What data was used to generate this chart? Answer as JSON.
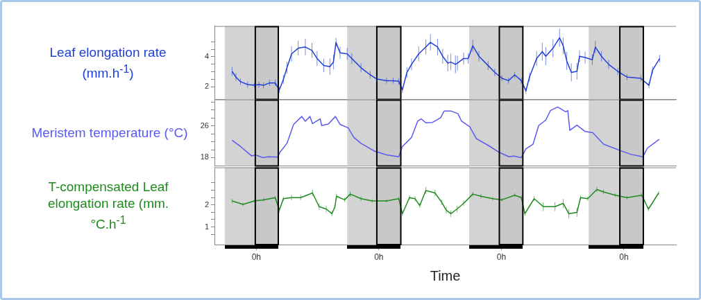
{
  "chart_data": [
    {
      "type": "line",
      "ylabel": "Leaf elongation rate (mm.h$^{-1}$)",
      "xlim": [
        "--01-01T15:48",
        "--01-05T10:12"
      ],
      "ylim": [
        1.15,
        6.05
      ],
      "yticks": [
        2,
        {
          "value": 2.5,
          "label": null
        },
        {
          "value": 3,
          "label": null
        },
        {
          "value": 3.5,
          "label": null
        },
        4,
        {
          "value": 4.5,
          "label": null
        },
        {
          "value": 5,
          "label": null
        }
      ],
      "tick_labels": "y",
      "grid": false,
      "bands": [
        {
          "axis": "x",
          "from": "--01-01T17:48",
          "to": "--01-02T04:18",
          "color": "#d3d3d3"
        },
        {
          "axis": "x",
          "from": "--01-02T17:48",
          "to": "--01-03T04:18",
          "color": "#d3d3d3"
        },
        {
          "axis": "x",
          "from": "--01-03T17:42",
          "to": "--01-04T04:12",
          "color": "#d3d3d3"
        },
        {
          "axis": "x",
          "from": "--01-04T17:06",
          "to": "--01-05T03:48",
          "color": "#d3d3d3"
        },
        {
          "axis": "x",
          "from": "--01-01T23:48",
          "to": "--01-02T04:18"
        },
        {
          "axis": "x",
          "from": "--01-02T23:36",
          "to": "--01-03T04:18"
        },
        {
          "axis": "x",
          "from": "--01-03T23:36",
          "to": "--01-04T04:12"
        },
        {
          "axis": "x",
          "from": "--01-04T23:12",
          "to": "--01-05T03:48"
        }
      ],
      "series": [
        {
          "color": "#1f3fd6",
          "x": [
            "--01-01T19:15",
            "--01-01T20:00",
            "--01-01T20:54",
            "--01-01T22:18",
            "--01-01T23:36",
            "--01-02T00:30",
            "--01-02T01:24",
            "--01-02T02:36",
            "--01-02T03:42",
            "--01-02T04:30",
            "--01-02T05:18",
            "--01-02T06:00",
            "--01-02T06:54",
            "--01-02T08:12",
            "--01-02T09:36",
            "--01-02T10:54",
            "--01-02T11:54",
            "--01-02T13:12",
            "--01-02T14:24",
            "--01-02T15:06",
            "--01-02T15:36",
            "--01-02T16:24",
            "--01-02T17:48",
            "--01-02T18:42",
            "--01-02T20:30",
            "--01-02T22:18",
            "--01-02T23:36",
            "--01-03T01:30",
            "--01-03T02:48",
            "--01-03T03:54",
            "--01-03T04:36",
            "--01-03T05:30",
            "--01-03T06:24",
            "--01-03T07:48",
            "--01-03T09:12",
            "--01-03T10:06",
            "--01-03T11:30",
            "--01-03T12:30",
            "--01-03T13:30",
            "--01-03T14:06",
            "--01-03T15:00",
            "--01-03T15:24",
            "--01-03T16:36",
            "--01-03T17:30",
            "--01-03T18:24",
            "--01-03T19:36",
            "--01-03T21:24",
            "--01-03T22:42",
            "--01-04T00:06",
            "--01-04T01:24",
            "--01-04T02:36",
            "--01-04T03:54",
            "--01-04T04:48",
            "--01-04T05:30",
            "--01-04T06:54",
            "--01-04T08:00",
            "--01-04T08:42",
            "--01-04T10:06",
            "--01-04T11:24",
            "--01-04T12:06",
            "--01-04T12:48",
            "--01-04T13:42",
            "--01-04T14:48",
            "--01-04T15:18",
            "--01-04T16:24",
            "--01-04T17:48",
            "--01-04T18:24",
            "--01-04T19:36",
            "--01-04T21:00",
            "--01-04T22:48",
            "--01-05T00:36",
            "--01-05T03:18",
            "--01-05T04:54",
            "--01-05T05:36",
            "--01-05T07:00"
          ],
          "values": [
            3.02,
            2.64,
            2.33,
            2.14,
            2.09,
            2.14,
            2.09,
            2.25,
            2.25,
            1.78,
            2.48,
            3.26,
            4.19,
            4.57,
            4.65,
            4.42,
            3.88,
            3.41,
            3.33,
            3.64,
            4.96,
            4.26,
            4.19,
            3.88,
            3.26,
            2.79,
            2.51,
            2.4,
            2.4,
            2.36,
            1.78,
            2.95,
            3.49,
            4.19,
            4.65,
            4.96,
            4.65,
            4.03,
            3.57,
            3.64,
            3.49,
            3.57,
            3.88,
            3.88,
            4.73,
            4.03,
            3.41,
            2.95,
            2.56,
            2.4,
            2.79,
            2.4,
            1.71,
            2.64,
            3.88,
            4.34,
            4.03,
            4.57,
            5.27,
            4.73,
            3.72,
            2.95,
            3.02,
            4.03,
            3.95,
            3.8,
            4.65,
            4.03,
            3.49,
            3.02,
            2.64,
            2.56,
            2.09,
            3.1,
            3.88
          ],
          "errors": [
            0.3,
            0.25,
            0.2,
            0.2,
            0.15,
            0.2,
            0.2,
            0.2,
            0.2,
            0.2,
            0.3,
            0.4,
            0.5,
            0.5,
            0.55,
            0.5,
            0.5,
            0.45,
            0.55,
            0.5,
            0.3,
            0.4,
            0.4,
            0.35,
            0.3,
            0.25,
            0.2,
            0.2,
            0.2,
            0.2,
            0.2,
            0.35,
            0.4,
            0.5,
            0.5,
            0.55,
            0.55,
            0.5,
            0.55,
            0.55,
            0.6,
            0.5,
            0.4,
            0.35,
            0.4,
            0.35,
            0.3,
            0.25,
            0.2,
            0.2,
            0.2,
            0.2,
            0.2,
            0.3,
            0.5,
            0.6,
            0.6,
            0.6,
            0.6,
            0.55,
            0.6,
            0.6,
            0.55,
            0.4,
            0.4,
            0.35,
            0.4,
            0.35,
            0.3,
            0.25,
            0.2,
            0.2,
            0.2,
            0.25,
            0.25
          ]
        }
      ]
    },
    {
      "type": "line",
      "ylabel": "Meristem temperature (°C)",
      "xlim": [
        "--01-01T15:48",
        "--01-05T10:12"
      ],
      "ylim": [
        15.9,
        32.7
      ],
      "yticks": [
        18,
        {
          "value": 20,
          "label": null
        },
        {
          "value": 22,
          "label": null
        },
        {
          "value": 24,
          "label": null
        },
        26,
        {
          "value": 28,
          "label": null
        },
        {
          "value": 30,
          "label": null
        },
        {
          "value": 32,
          "label": null
        }
      ],
      "tick_labels": "y",
      "grid": false,
      "bands": [
        {
          "axis": "x",
          "from": "--01-01T17:48",
          "to": "--01-02T04:18",
          "color": "#d3d3d3"
        },
        {
          "axis": "x",
          "from": "--01-02T17:48",
          "to": "--01-03T04:18",
          "color": "#d3d3d3"
        },
        {
          "axis": "x",
          "from": "--01-03T17:42",
          "to": "--01-04T04:12",
          "color": "#d3d3d3"
        },
        {
          "axis": "x",
          "from": "--01-04T17:06",
          "to": "--01-05T03:48",
          "color": "#d3d3d3"
        },
        {
          "axis": "x",
          "from": "--01-01T23:48",
          "to": "--01-02T04:18"
        },
        {
          "axis": "x",
          "from": "--01-02T23:36",
          "to": "--01-03T04:18"
        },
        {
          "axis": "x",
          "from": "--01-03T23:36",
          "to": "--01-04T04:12"
        },
        {
          "axis": "x",
          "from": "--01-04T23:12",
          "to": "--01-05T03:48"
        }
      ],
      "series": [
        {
          "color": "#5a5af0",
          "x": [
            "--01-01T19:15",
            "--01-01T20:54",
            "--01-01T23:06",
            "--01-01T23:48",
            "--01-02T01:12",
            "--01-02T02:24",
            "--01-02T04:12",
            "--01-02T04:36",
            "--01-02T06:00",
            "--01-02T07:18",
            "--01-02T08:54",
            "--01-02T09:36",
            "--01-02T10:30",
            "--01-02T11:00",
            "--01-02T12:30",
            "--01-02T12:48",
            "--01-02T14:06",
            "--01-02T15:30",
            "--01-02T16:24",
            "--01-02T18:00",
            "--01-02T19:06",
            "--01-02T20:30",
            "--01-02T23:12",
            "--01-03T01:30",
            "--01-03T03:54",
            "--01-03T04:36",
            "--01-03T06:24",
            "--01-03T07:36",
            "--01-03T08:18",
            "--01-03T09:12",
            "--01-03T10:30",
            "--01-03T11:42",
            "--01-03T12:06",
            "--01-03T12:48",
            "--01-03T14:06",
            "--01-03T15:30",
            "--01-03T16:12",
            "--01-03T17:48",
            "--01-03T19:06",
            "--01-03T21:24",
            "--01-03T23:36",
            "--01-04T01:30",
            "--01-04T02:24",
            "--01-04T03:54",
            "--01-04T04:48",
            "--01-04T06:12",
            "--01-04T07:18",
            "--01-04T08:42",
            "--01-04T09:36",
            "--01-04T11:00",
            "--01-04T12:36",
            "--01-04T13:00",
            "--01-04T13:24",
            "--01-04T14:48",
            "--01-04T16:24",
            "--01-04T17:54",
            "--01-04T20:00",
            "--01-04T23:12",
            "--01-05T01:24",
            "--01-05T03:42",
            "--01-05T04:36",
            "--01-05T06:54"
          ],
          "values": [
            22.4,
            20.8,
            18.4,
            18.7,
            18.0,
            18.2,
            18.1,
            19.3,
            21.6,
            26.4,
            28.4,
            27.2,
            28.4,
            26.6,
            27.8,
            26.1,
            26.5,
            28.4,
            26.4,
            25.5,
            23.1,
            21.6,
            19.6,
            18.7,
            18.2,
            20.8,
            23.1,
            27.2,
            27.8,
            26.8,
            26.9,
            27.8,
            28.1,
            29.8,
            29.8,
            29.1,
            27.2,
            25.8,
            22.8,
            21.1,
            19.3,
            18.2,
            18.4,
            18.0,
            20.2,
            21.4,
            26.1,
            27.5,
            29.9,
            30.8,
            29.6,
            29.9,
            24.9,
            26.2,
            24.6,
            24.3,
            21.4,
            19.8,
            18.8,
            18.2,
            20.4,
            22.6
          ]
        }
      ]
    },
    {
      "type": "line",
      "ylabel": "T-compensated Leaf elongation rate (mm.°C.h$^{-1}$",
      "xlabel": "Time",
      "xlim": [
        "--01-01T15:48",
        "--01-05T10:12"
      ],
      "xticks": [
        {
          "value": "--01-02T00:00",
          "label": "0h"
        },
        {
          "value": "--01-03T00:00",
          "label": "0h"
        },
        {
          "value": "--01-04T00:00",
          "label": "0h"
        },
        {
          "value": "--01-05T00:00",
          "label": "0h"
        }
      ],
      "ylim": [
        0.2,
        3.7
      ],
      "yticks": [
        {
          "value": 0.667,
          "label": null
        },
        1,
        {
          "value": 1.333,
          "label": null
        },
        {
          "value": 1.667,
          "label": null
        },
        2,
        {
          "value": 2.333,
          "label": null
        },
        {
          "value": 2.667,
          "label": null
        },
        {
          "value": 3,
          "label": null
        }
      ],
      "grid": false,
      "bands": [
        {
          "axis": "x",
          "from": "--01-01T17:48",
          "to": "--01-02T04:18",
          "color": "#d3d3d3"
        },
        {
          "axis": "x",
          "from": "--01-02T17:48",
          "to": "--01-03T04:18",
          "color": "#d3d3d3"
        },
        {
          "axis": "x",
          "from": "--01-03T17:42",
          "to": "--01-04T04:12",
          "color": "#d3d3d3"
        },
        {
          "axis": "x",
          "from": "--01-04T17:06",
          "to": "--01-05T03:48",
          "color": "#d3d3d3"
        },
        {
          "axis": "x",
          "from": "--01-01T23:48",
          "to": "--01-02T04:18"
        },
        {
          "axis": "x",
          "from": "--01-02T23:36",
          "to": "--01-03T04:18"
        },
        {
          "axis": "x",
          "from": "--01-03T23:36",
          "to": "--01-04T04:12"
        },
        {
          "axis": "x",
          "from": "--01-04T23:12",
          "to": "--01-05T03:48"
        }
      ],
      "series": [
        {
          "color": "#1e8a1e",
          "x": [
            "--01-01T19:15",
            "--01-01T21:24",
            "--01-01T23:36",
            "--01-02T01:24",
            "--01-02T03:42",
            "--01-02T04:30",
            "--01-02T05:18",
            "--01-02T06:54",
            "--01-02T08:42",
            "--01-02T11:00",
            "--01-02T12:18",
            "--01-02T13:42",
            "--01-02T14:48",
            "--01-02T15:24",
            "--01-02T15:42",
            "--01-02T17:18",
            "--01-02T18:24",
            "--01-02T20:30",
            "--01-02T22:42",
            "--01-03T01:30",
            "--01-03T03:54",
            "--01-03T04:36",
            "--01-03T06:00",
            "--01-03T07:06",
            "--01-03T08:00",
            "--01-03T09:12",
            "--01-03T11:00",
            "--01-03T12:18",
            "--01-03T13:12",
            "--01-03T14:06",
            "--01-03T15:18",
            "--01-03T16:36",
            "--01-03T18:24",
            "--01-03T20:00",
            "--01-03T22:18",
            "--01-04T00:06",
            "--01-04T02:36",
            "--01-04T03:54",
            "--01-04T04:36",
            "--01-04T06:24",
            "--01-04T08:12",
            "--01-04T10:30",
            "--01-04T12:06",
            "--01-04T13:12",
            "--01-04T14:48",
            "--01-04T15:30",
            "--01-04T16:54",
            "--01-04T18:42",
            "--01-04T20:00",
            "--01-04T22:18",
            "--01-05T00:36",
            "--01-05T03:30",
            "--01-05T04:48",
            "--01-05T06:48"
          ],
          "values": [
            2.18,
            2.02,
            2.18,
            2.23,
            2.33,
            1.76,
            2.28,
            2.33,
            2.33,
            2.54,
            1.92,
            1.81,
            1.6,
            1.92,
            2.39,
            2.23,
            2.49,
            2.28,
            2.18,
            2.18,
            2.28,
            1.6,
            2.33,
            2.28,
            1.97,
            2.65,
            2.54,
            2.12,
            1.76,
            1.6,
            1.81,
            2.07,
            2.49,
            2.39,
            2.28,
            2.23,
            2.44,
            2.33,
            1.6,
            2.28,
            1.92,
            1.92,
            2.07,
            1.6,
            1.66,
            2.33,
            2.28,
            2.7,
            2.59,
            2.44,
            2.33,
            2.44,
            1.81,
            2.54
          ],
          "errors": [
            0.1,
            0.08,
            0.08,
            0.08,
            0.08,
            0.1,
            0.1,
            0.12,
            0.12,
            0.15,
            0.15,
            0.15,
            0.12,
            0.1,
            0.12,
            0.1,
            0.12,
            0.1,
            0.08,
            0.08,
            0.08,
            0.1,
            0.1,
            0.12,
            0.1,
            0.15,
            0.15,
            0.12,
            0.15,
            0.15,
            0.15,
            0.12,
            0.1,
            0.1,
            0.08,
            0.08,
            0.08,
            0.08,
            0.1,
            0.12,
            0.2,
            0.2,
            0.2,
            0.2,
            0.2,
            0.1,
            0.1,
            0.12,
            0.1,
            0.08,
            0.08,
            0.08,
            0.1,
            0.08
          ]
        }
      ]
    }
  ]
}
